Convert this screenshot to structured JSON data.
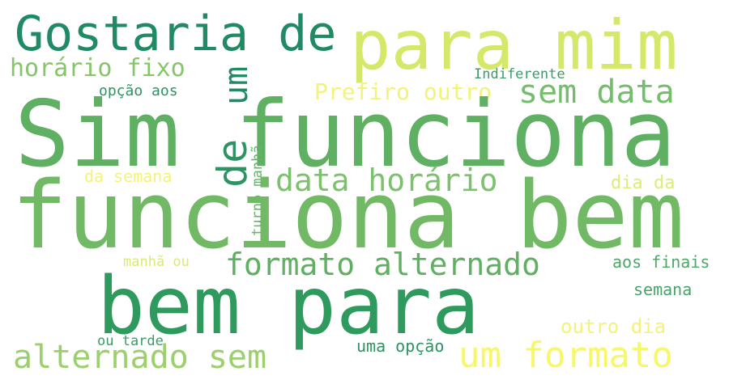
{
  "words": [
    {
      "id": "w01",
      "text": "Gostaria de",
      "color": "#1f8a63"
    },
    {
      "id": "w02",
      "text": "para mim",
      "color": "#d5e86a"
    },
    {
      "id": "w03",
      "text": "horário fixo",
      "color": "#86c66a"
    },
    {
      "id": "w04",
      "text": "um",
      "color": "#1f8a63"
    },
    {
      "id": "w05",
      "text": "Indiferente",
      "color": "#3d9b6a"
    },
    {
      "id": "w06",
      "text": "opção aos",
      "color": "#2d9362"
    },
    {
      "id": "w07",
      "text": "Prefiro outro",
      "color": "#f1f37a"
    },
    {
      "id": "w08",
      "text": "sem data",
      "color": "#74bd6c"
    },
    {
      "id": "w09",
      "text": "Sim funciona",
      "color": "#5fb063"
    },
    {
      "id": "w10",
      "text": "de",
      "color": "#2d9362"
    },
    {
      "id": "w11",
      "text": "turno manhã",
      "color": "#63b46a"
    },
    {
      "id": "w12",
      "text": "da semana",
      "color": "#f4f27b"
    },
    {
      "id": "w13",
      "text": "data horário",
      "color": "#7cc16b"
    },
    {
      "id": "w14",
      "text": "dia da",
      "color": "#dfeb7a"
    },
    {
      "id": "w15",
      "text": "funciona bem",
      "color": "#72b965"
    },
    {
      "id": "w16",
      "text": "manhã ou",
      "color": "#d9ea77"
    },
    {
      "id": "w17",
      "text": "formato alternado",
      "color": "#5fb063"
    },
    {
      "id": "w18",
      "text": "aos finais",
      "color": "#4da66a"
    },
    {
      "id": "w19",
      "text": "bem para",
      "color": "#2f9a5e"
    },
    {
      "id": "w20",
      "text": "semana",
      "color": "#48a36a"
    },
    {
      "id": "w21",
      "text": "outro dia",
      "color": "#f3f27d"
    },
    {
      "id": "w22",
      "text": "ou tarde",
      "color": "#3d9b6a"
    },
    {
      "id": "w23",
      "text": "uma opção",
      "color": "#2d9362"
    },
    {
      "id": "w24",
      "text": "alternado sem",
      "color": "#9bd06c"
    },
    {
      "id": "w25",
      "text": "um formato",
      "color": "#f7f76a"
    }
  ]
}
